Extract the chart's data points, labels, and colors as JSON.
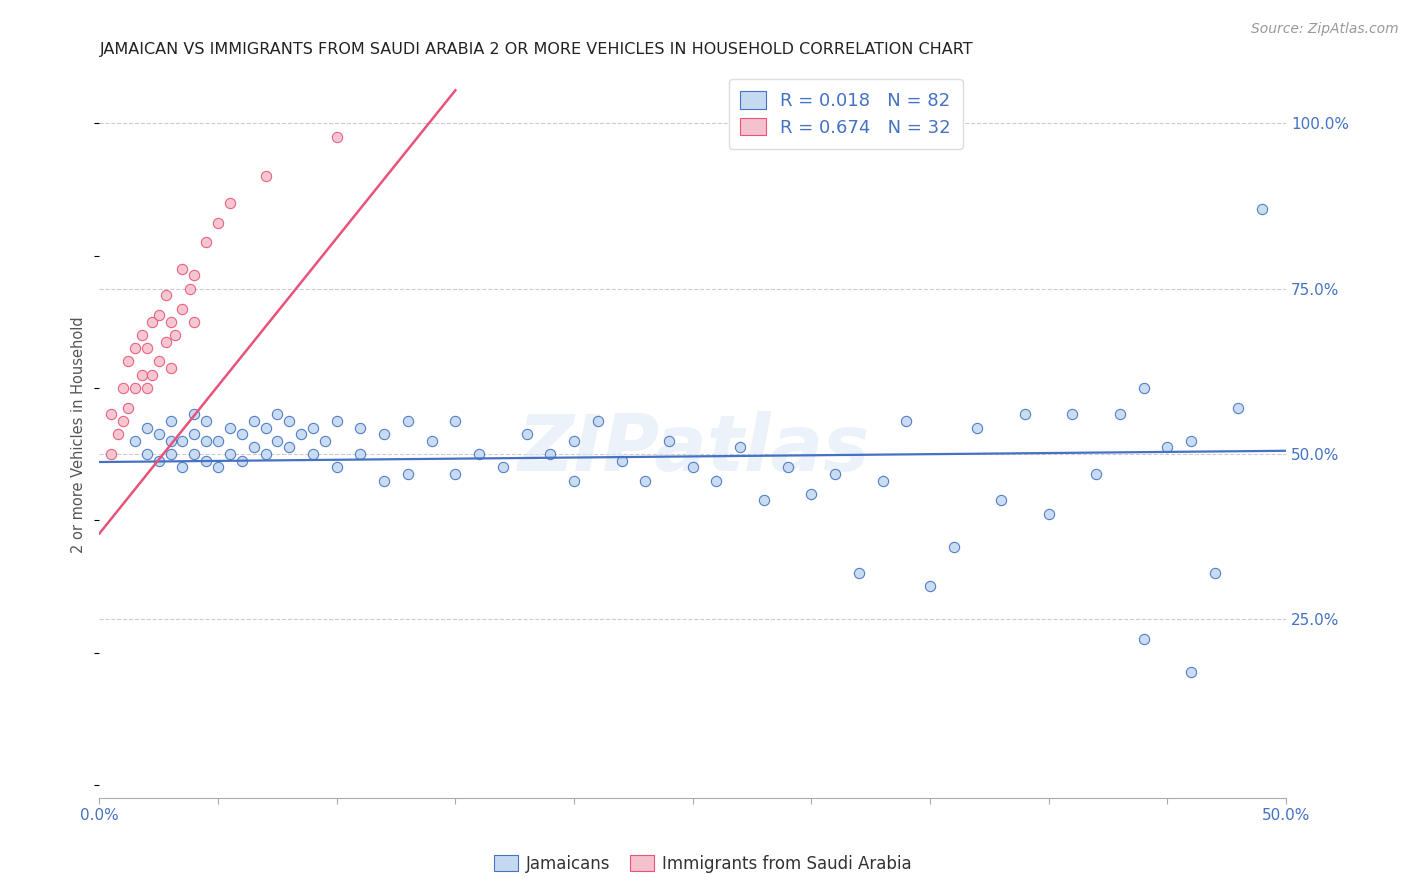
{
  "title": "JAMAICAN VS IMMIGRANTS FROM SAUDI ARABIA 2 OR MORE VEHICLES IN HOUSEHOLD CORRELATION CHART",
  "source_text": "Source: ZipAtlas.com",
  "ylabel": "2 or more Vehicles in Household",
  "xlim": [
    0.0,
    0.5
  ],
  "ylim": [
    -0.02,
    1.08
  ],
  "ytick_positions": [
    0.25,
    0.5,
    0.75,
    1.0
  ],
  "ytick_labels": [
    "25.0%",
    "50.0%",
    "75.0%",
    "100.0%"
  ],
  "legend_r_blue": "R = 0.018",
  "legend_n_blue": "N = 82",
  "legend_r_pink": "R = 0.674",
  "legend_n_pink": "N = 32",
  "legend_label_blue": "Jamaicans",
  "legend_label_pink": "Immigrants from Saudi Arabia",
  "watermark": "ZIPatlas",
  "blue_color": "#c5d9f1",
  "pink_color": "#f4c2cc",
  "blue_edge_color": "#4472c4",
  "pink_edge_color": "#e8537a",
  "blue_line_color": "#4472c4",
  "pink_line_color": "#e8537a",
  "title_color": "#222222",
  "axis_label_color": "#555555",
  "tick_color": "#4472c4",
  "legend_text_color": "#4472c4",
  "background_color": "#ffffff",
  "grid_color": "#cccccc",
  "blue_line_x": [
    0.0,
    0.5
  ],
  "blue_line_y": [
    0.488,
    0.505
  ],
  "pink_line_x": [
    0.0,
    0.15
  ],
  "pink_line_y": [
    0.38,
    1.05
  ],
  "blue_x": [
    0.015,
    0.02,
    0.02,
    0.025,
    0.025,
    0.03,
    0.03,
    0.03,
    0.035,
    0.035,
    0.04,
    0.04,
    0.04,
    0.045,
    0.045,
    0.045,
    0.05,
    0.05,
    0.055,
    0.055,
    0.06,
    0.06,
    0.065,
    0.065,
    0.07,
    0.07,
    0.075,
    0.075,
    0.08,
    0.08,
    0.085,
    0.09,
    0.09,
    0.095,
    0.1,
    0.1,
    0.11,
    0.11,
    0.12,
    0.12,
    0.13,
    0.13,
    0.14,
    0.15,
    0.15,
    0.16,
    0.17,
    0.18,
    0.19,
    0.2,
    0.2,
    0.21,
    0.22,
    0.23,
    0.24,
    0.25,
    0.26,
    0.27,
    0.28,
    0.29,
    0.3,
    0.31,
    0.32,
    0.33,
    0.34,
    0.35,
    0.36,
    0.37,
    0.38,
    0.39,
    0.4,
    0.41,
    0.42,
    0.43,
    0.44,
    0.45,
    0.46,
    0.47,
    0.48,
    0.49,
    0.44,
    0.46
  ],
  "blue_y": [
    0.52,
    0.5,
    0.54,
    0.49,
    0.53,
    0.5,
    0.52,
    0.55,
    0.48,
    0.52,
    0.5,
    0.53,
    0.56,
    0.49,
    0.52,
    0.55,
    0.48,
    0.52,
    0.5,
    0.54,
    0.49,
    0.53,
    0.51,
    0.55,
    0.5,
    0.54,
    0.52,
    0.56,
    0.51,
    0.55,
    0.53,
    0.5,
    0.54,
    0.52,
    0.48,
    0.55,
    0.5,
    0.54,
    0.46,
    0.53,
    0.47,
    0.55,
    0.52,
    0.47,
    0.55,
    0.5,
    0.48,
    0.53,
    0.5,
    0.52,
    0.46,
    0.55,
    0.49,
    0.46,
    0.52,
    0.48,
    0.46,
    0.51,
    0.43,
    0.48,
    0.44,
    0.47,
    0.32,
    0.46,
    0.55,
    0.3,
    0.36,
    0.54,
    0.43,
    0.56,
    0.41,
    0.56,
    0.47,
    0.56,
    0.22,
    0.51,
    0.17,
    0.32,
    0.57,
    0.87,
    0.6,
    0.52
  ],
  "pink_x": [
    0.005,
    0.005,
    0.008,
    0.01,
    0.01,
    0.012,
    0.012,
    0.015,
    0.015,
    0.018,
    0.018,
    0.02,
    0.02,
    0.022,
    0.022,
    0.025,
    0.025,
    0.028,
    0.028,
    0.03,
    0.03,
    0.032,
    0.035,
    0.035,
    0.038,
    0.04,
    0.04,
    0.045,
    0.05,
    0.055,
    0.07,
    0.1
  ],
  "pink_y": [
    0.5,
    0.56,
    0.53,
    0.55,
    0.6,
    0.57,
    0.64,
    0.6,
    0.66,
    0.62,
    0.68,
    0.6,
    0.66,
    0.62,
    0.7,
    0.64,
    0.71,
    0.67,
    0.74,
    0.63,
    0.7,
    0.68,
    0.72,
    0.78,
    0.75,
    0.7,
    0.77,
    0.82,
    0.85,
    0.88,
    0.92,
    0.98
  ]
}
